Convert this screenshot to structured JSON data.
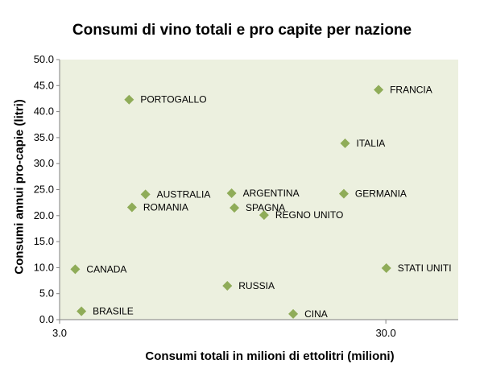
{
  "chart_data": {
    "type": "scatter",
    "title": "Consumi di vino totali e pro capite per nazione",
    "xlabel": "Consumi totali in milioni di ettolitri (milioni)",
    "ylabel": "Consumi annui pro-capie (litri)",
    "x_scale": "log",
    "xlim": [
      3.0,
      50.0
    ],
    "ylim": [
      0.0,
      50.0
    ],
    "x_ticks": [
      3.0,
      30.0
    ],
    "x_tick_labels": [
      "3.0",
      "30.0"
    ],
    "y_ticks": [
      0,
      5,
      10,
      15,
      20,
      25,
      30,
      35,
      40,
      45,
      50
    ],
    "y_tick_labels": [
      "0.0",
      "5.0",
      "10.0",
      "15.0",
      "20.0",
      "25.0",
      "30.0",
      "35.0",
      "40.0",
      "45.0",
      "50.0"
    ],
    "grid": false,
    "plot_background": "#ecf0df",
    "marker_color": "#8fac58",
    "points": [
      {
        "label": "FRANCIA",
        "x": 28.5,
        "y": 44.2
      },
      {
        "label": "PORTOGALLO",
        "x": 4.9,
        "y": 42.3
      },
      {
        "label": "ITALIA",
        "x": 22.5,
        "y": 33.9
      },
      {
        "label": "AUSTRALIA",
        "x": 5.5,
        "y": 24.1
      },
      {
        "label": "ARGENTINA",
        "x": 10.1,
        "y": 24.3
      },
      {
        "label": "GERMANIA",
        "x": 22.3,
        "y": 24.2
      },
      {
        "label": "ROMANIA",
        "x": 5.0,
        "y": 21.6
      },
      {
        "label": "SPAGNA",
        "x": 10.3,
        "y": 21.5
      },
      {
        "label": "REGNO UNITO",
        "x": 12.7,
        "y": 20.1
      },
      {
        "label": "CANADA",
        "x": 3.35,
        "y": 9.7
      },
      {
        "label": "STATI UNITI",
        "x": 30.1,
        "y": 9.9
      },
      {
        "label": "RUSSIA",
        "x": 9.8,
        "y": 6.5
      },
      {
        "label": "BRASILE",
        "x": 3.5,
        "y": 1.6
      },
      {
        "label": "CINA",
        "x": 15.6,
        "y": 1.1
      }
    ]
  }
}
